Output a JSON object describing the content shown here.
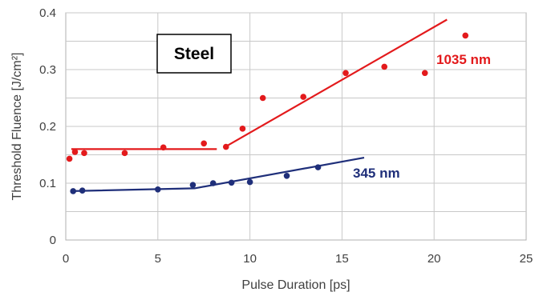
{
  "chart_data": {
    "type": "scatter",
    "xlabel": "Pulse Duration [ps]",
    "ylabel": "Threshold Fluence [J/cm²]",
    "xlim": [
      0,
      25
    ],
    "ylim": [
      0,
      0.4
    ],
    "x_ticks": [
      0,
      5,
      10,
      15,
      20,
      25
    ],
    "y_ticks": [
      0,
      0.1,
      0.2,
      0.3,
      0.4
    ],
    "x_tick_labels": [
      "0",
      "5",
      "10",
      "15",
      "20",
      "25"
    ],
    "y_tick_labels": [
      "0",
      "0.1",
      "0.2",
      "0.3",
      "0.4"
    ],
    "grid": true,
    "annotation_box": "Steel",
    "series": [
      {
        "name": "1035 nm",
        "color": "#e31a1c",
        "points": [
          [
            0.2,
            0.143
          ],
          [
            0.5,
            0.155
          ],
          [
            1.0,
            0.153
          ],
          [
            3.2,
            0.153
          ],
          [
            5.3,
            0.163
          ],
          [
            7.5,
            0.17
          ],
          [
            8.7,
            0.164
          ],
          [
            9.6,
            0.196
          ],
          [
            10.7,
            0.25
          ],
          [
            12.9,
            0.252
          ],
          [
            15.2,
            0.294
          ],
          [
            17.3,
            0.305
          ],
          [
            19.5,
            0.294
          ],
          [
            21.7,
            0.36
          ]
        ],
        "fit_lines": [
          [
            [
              0.3,
              0.16
            ],
            [
              8.2,
              0.16
            ]
          ],
          [
            [
              8.6,
              0.163
            ],
            [
              20.7,
              0.388
            ]
          ]
        ]
      },
      {
        "name": "345 nm",
        "color": "#1f2f7a",
        "points": [
          [
            0.4,
            0.086
          ],
          [
            0.9,
            0.087
          ],
          [
            5.0,
            0.089
          ],
          [
            6.9,
            0.097
          ],
          [
            8.0,
            0.1
          ],
          [
            9.0,
            0.101
          ],
          [
            10.0,
            0.102
          ],
          [
            12.0,
            0.113
          ],
          [
            13.7,
            0.128
          ]
        ],
        "fit_lines": [
          [
            [
              0.3,
              0.086
            ],
            [
              7.0,
              0.091
            ],
            [
              16.2,
              0.145
            ]
          ]
        ]
      }
    ]
  }
}
